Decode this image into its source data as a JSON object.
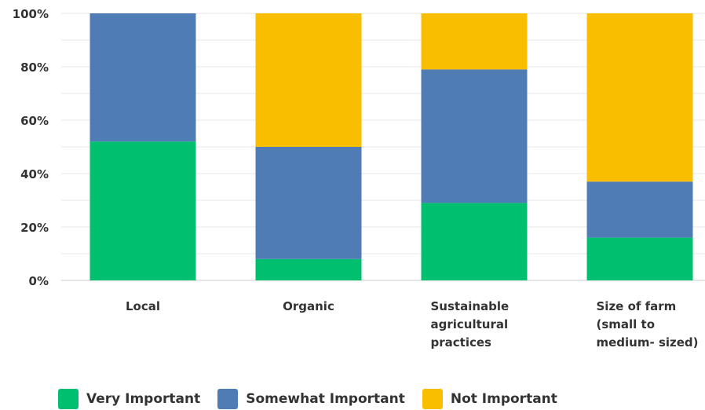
{
  "chart_data": {
    "type": "bar",
    "stacked": true,
    "categories": [
      [
        "Local"
      ],
      [
        "Organic"
      ],
      [
        "Sustainable",
        "agricultural",
        "practices"
      ],
      [
        "Size of farm",
        "(small to",
        "medium- sized)"
      ]
    ],
    "series": [
      {
        "name": "Very Important",
        "color": "#00bf6f",
        "values": [
          52,
          8,
          29,
          16
        ]
      },
      {
        "name": "Somewhat Important",
        "color": "#507cb6",
        "values": [
          48,
          42,
          50,
          21
        ]
      },
      {
        "name": "Not Important",
        "color": "#f9be00",
        "values": [
          0,
          50,
          21,
          63
        ]
      }
    ],
    "y_ticks": [
      "0%",
      "20%",
      "40%",
      "60%",
      "80%",
      "100%"
    ],
    "ylim": [
      0,
      100
    ],
    "grid": true,
    "legend_position": "bottom"
  }
}
